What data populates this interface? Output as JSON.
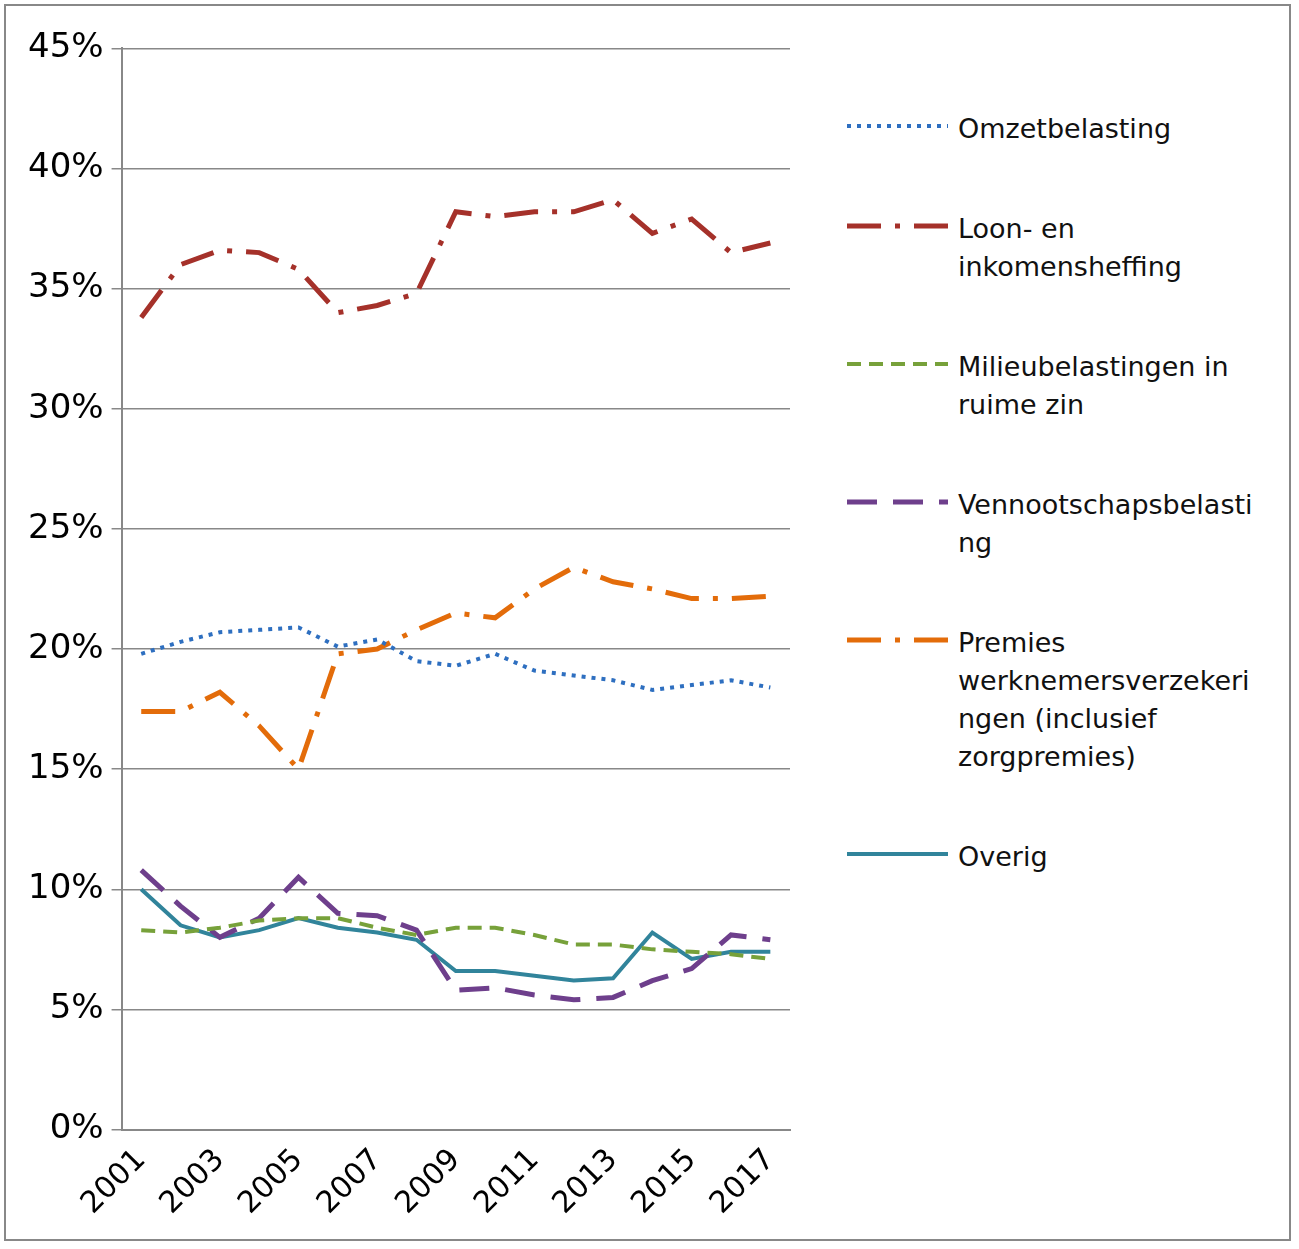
{
  "chart_data": {
    "type": "line",
    "categories": [
      "2001",
      null,
      "2003",
      null,
      "2005",
      null,
      "2007",
      null,
      "2009",
      null,
      "2011",
      null,
      "2013",
      null,
      "2015",
      null,
      "2017"
    ],
    "ylim": [
      0,
      45
    ],
    "yticks": [
      {
        "value": 0,
        "label": "0%"
      },
      {
        "value": 5,
        "label": "5%"
      },
      {
        "value": 10,
        "label": "10%"
      },
      {
        "value": 15,
        "label": "15%"
      },
      {
        "value": 20,
        "label": "20%"
      },
      {
        "value": 25,
        "label": "25%"
      },
      {
        "value": 30,
        "label": "30%"
      },
      {
        "value": 35,
        "label": "35%"
      },
      {
        "value": 40,
        "label": "40%"
      },
      {
        "value": 45,
        "label": "45%"
      }
    ],
    "grid": true,
    "legend": "right",
    "series": [
      {
        "name": "Omzetbelasting",
        "color": "#2e6fc0",
        "line_style": "dotted",
        "values": [
          19.8,
          20.3,
          20.7,
          20.8,
          20.9,
          20.1,
          20.4,
          19.5,
          19.3,
          19.8,
          19.1,
          18.9,
          18.7,
          18.3,
          18.5,
          18.7,
          18.4
        ]
      },
      {
        "name": "Loon- en inkomensheffing",
        "color": "#a5312a",
        "line_style": "dashdot",
        "values": [
          33.8,
          36.0,
          36.6,
          36.5,
          35.8,
          34.0,
          34.3,
          34.8,
          38.2,
          38.0,
          38.2,
          38.2,
          38.7,
          37.3,
          37.9,
          36.5,
          36.9
        ]
      },
      {
        "name": "Milieubelastingen in ruime zin",
        "color": "#77a13a",
        "line_style": "dashed",
        "values": [
          8.3,
          8.2,
          8.4,
          8.7,
          8.8,
          8.8,
          8.4,
          8.1,
          8.4,
          8.4,
          8.1,
          7.7,
          7.7,
          7.5,
          7.4,
          7.3,
          7.1
        ]
      },
      {
        "name": "Vennootschapsbelasting",
        "color": "#6e3f8c",
        "line_style": "longdash",
        "values": [
          10.8,
          9.3,
          8.0,
          8.8,
          10.5,
          9.0,
          8.9,
          8.3,
          5.8,
          5.9,
          5.6,
          5.4,
          5.5,
          6.2,
          6.7,
          8.1,
          7.9
        ]
      },
      {
        "name": "Premies werknemersverzekeringen (inclusief zorgpremies)",
        "color": "#e36c0a",
        "line_style": "dashdot",
        "values": [
          17.4,
          17.4,
          18.2,
          16.8,
          15.0,
          19.8,
          20.0,
          20.8,
          21.5,
          21.3,
          22.5,
          23.4,
          22.8,
          22.5,
          22.1,
          22.1,
          22.2
        ]
      },
      {
        "name": "Overig",
        "color": "#31849b",
        "line_style": "solid",
        "values": [
          10.0,
          8.5,
          8.0,
          8.3,
          8.8,
          8.4,
          8.2,
          7.9,
          6.6,
          6.6,
          6.4,
          6.2,
          6.3,
          8.2,
          7.1,
          7.4,
          7.4
        ]
      }
    ]
  }
}
